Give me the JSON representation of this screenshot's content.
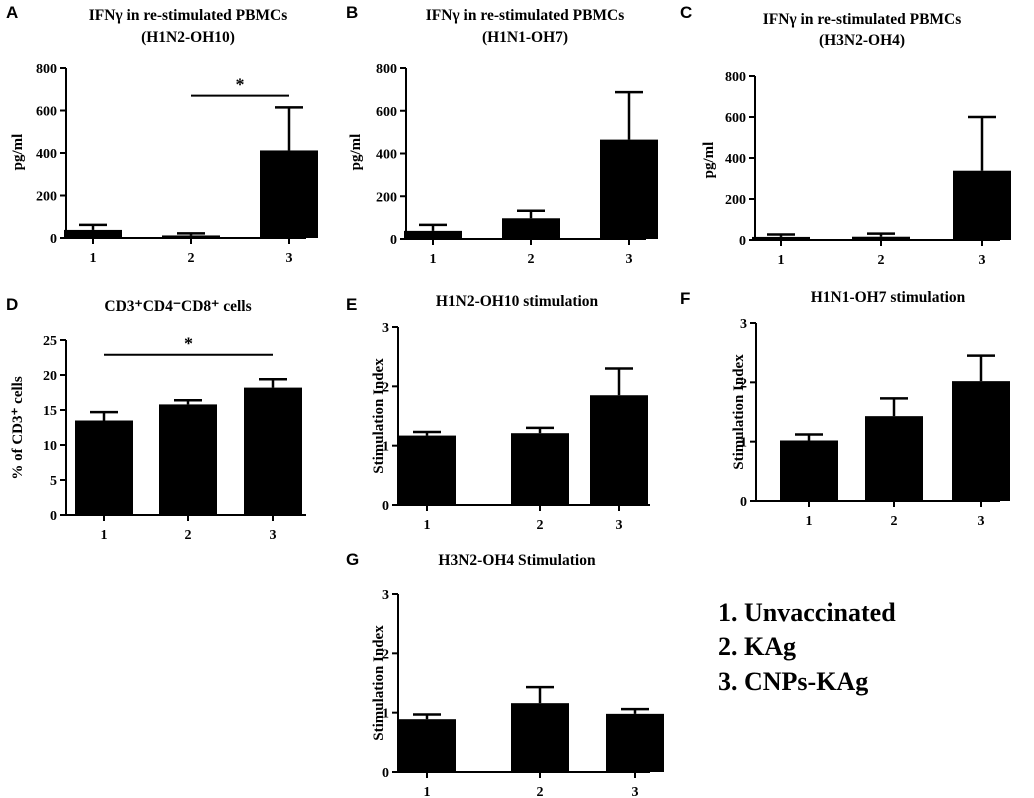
{
  "chart_data": [
    {
      "id": "A",
      "type": "bar",
      "title_lines": [
        "IFNγ in re-stimulated PBMCs",
        "(H1N2-OH10)"
      ],
      "ylabel": "pg/ml",
      "categories": [
        "1",
        "2",
        "3"
      ],
      "values": [
        38,
        12,
        412
      ],
      "errors": [
        24,
        10,
        203
      ],
      "ylim": [
        0,
        800
      ],
      "yticks": [
        0,
        200,
        400,
        600,
        800
      ],
      "significance": [
        {
          "from": 1,
          "to": 2,
          "label": "*",
          "y": 670
        }
      ]
    },
    {
      "id": "B",
      "type": "bar",
      "title_lines": [
        "IFNγ in re-stimulated PBMCs",
        "(H1N1-OH7)"
      ],
      "ylabel": "pg/ml",
      "categories": [
        "1",
        "2",
        "3"
      ],
      "values": [
        38,
        97,
        465
      ],
      "errors": [
        28,
        35,
        222
      ],
      "ylim": [
        0,
        800
      ],
      "yticks": [
        0,
        200,
        400,
        600,
        800
      ],
      "significance": []
    },
    {
      "id": "C",
      "type": "bar",
      "title_lines": [
        "IFNγ in re-stimulated PBMCs",
        "(H3N2-OH4)"
      ],
      "ylabel": "pg/ml",
      "categories": [
        "1",
        "2",
        "3"
      ],
      "values": [
        15,
        16,
        338
      ],
      "errors": [
        12,
        15,
        262
      ],
      "ylim": [
        0,
        800
      ],
      "yticks": [
        0,
        200,
        400,
        600,
        800
      ],
      "significance": []
    },
    {
      "id": "D",
      "type": "bar",
      "title_lines": [
        "CD3⁺CD4⁻CD8⁺ cells"
      ],
      "ylabel": "% of CD3⁺ cells",
      "categories": [
        "1",
        "2",
        "3"
      ],
      "values": [
        13.5,
        15.8,
        18.2
      ],
      "errors": [
        1.2,
        0.6,
        1.2
      ],
      "ylim": [
        0,
        25
      ],
      "yticks": [
        0,
        5,
        10,
        15,
        20,
        25
      ],
      "significance": [
        {
          "from": 0,
          "to": 2,
          "label": "*",
          "y": 22.9
        }
      ]
    },
    {
      "id": "E",
      "type": "bar",
      "title_lines": [
        "H1N2-OH10 stimulation"
      ],
      "ylabel": "Stimulation Index",
      "categories": [
        "1",
        "2",
        "3"
      ],
      "values": [
        1.17,
        1.21,
        1.85
      ],
      "errors": [
        0.06,
        0.09,
        0.45
      ],
      "ylim": [
        0,
        3
      ],
      "yticks": [
        0,
        1,
        2,
        3
      ],
      "significance": []
    },
    {
      "id": "F",
      "type": "bar",
      "title_lines": [
        "H1N1-OH7 stimulation"
      ],
      "ylabel": "Stimulation Index",
      "categories": [
        "1",
        "2",
        "3"
      ],
      "values": [
        1.02,
        1.43,
        2.02
      ],
      "errors": [
        0.1,
        0.3,
        0.43
      ],
      "ylim": [
        0,
        3
      ],
      "yticks": [
        0,
        1,
        2,
        3
      ],
      "significance": []
    },
    {
      "id": "G",
      "type": "bar",
      "title_lines": [
        "H3N2-OH4 Stimulation"
      ],
      "ylabel": "Stimulation Index",
      "categories": [
        "1",
        "2",
        "3"
      ],
      "values": [
        0.89,
        1.16,
        0.98
      ],
      "errors": [
        0.08,
        0.27,
        0.08
      ],
      "ylim": [
        0,
        3
      ],
      "yticks": [
        0,
        1,
        2,
        3
      ],
      "significance": []
    }
  ],
  "legend": [
    "1. Unvaccinated",
    "2. KAg",
    "3. CNPs-KAg"
  ],
  "colors": {
    "bar": "#000000",
    "axis": "#000000",
    "background": "#ffffff"
  }
}
